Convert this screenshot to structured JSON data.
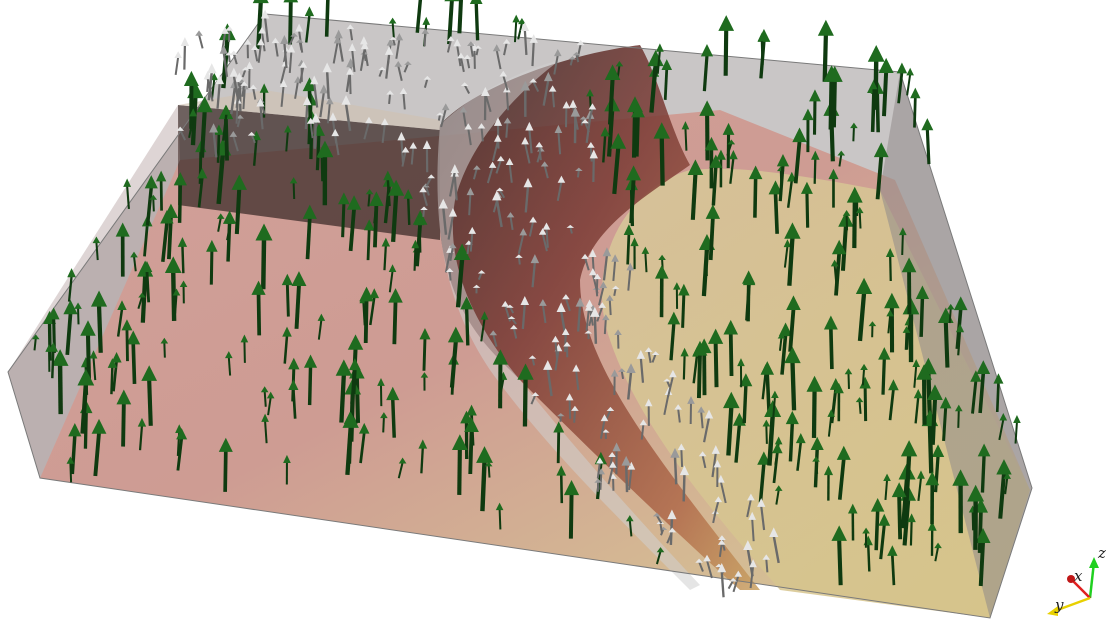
{
  "scene": {
    "description_kind": "3d-vector-field-render",
    "colors": {
      "background": "#ffffff",
      "box_edge": "#8a8a8a",
      "surface_warm": "#c98a80",
      "surface_light": "#d8c99a",
      "channel_dark": "#4a2a28",
      "arrow_green": "#1f6b1f",
      "arrow_green_dark": "#0f3a10",
      "arrow_white": "#e6e6e6",
      "arrow_grey": "#9a9a9a"
    }
  },
  "orientation_axes": {
    "x_label": "x",
    "y_label": "y",
    "z_label": "z",
    "x_color": "#e02020",
    "y_color": "#e8d000",
    "z_color": "#20d020"
  }
}
